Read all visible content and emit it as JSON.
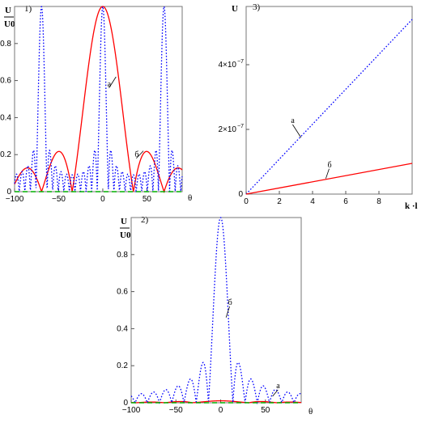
{
  "chart_data": [
    {
      "id": "panel-1",
      "type": "line",
      "panel_label": "1)",
      "ylabel_top": "U",
      "ylabel_bottom": "U0",
      "xlabel": "θ",
      "xlim": [
        -100,
        90
      ],
      "ylim": [
        0,
        1
      ],
      "xticks": [
        "-100",
        "-50",
        "0",
        "50"
      ],
      "xtick_values": [
        -100,
        -50,
        0,
        50
      ],
      "yticks": [
        "0",
        "0.2",
        "0.4",
        "0.6",
        "0.8"
      ],
      "ytick_values": [
        0,
        0.2,
        0.4,
        0.6,
        0.8
      ],
      "annotations": [
        {
          "text": "а",
          "x": 15,
          "y": 0.62,
          "tx": 7,
          "ty": 0.56
        },
        {
          "text": "б",
          "x": 46,
          "y": 0.22,
          "tx": 38,
          "ty": 0.18
        }
      ],
      "series": [
        {
          "id": "a",
          "color": "#ff0000",
          "dash": "",
          "func": "sinc",
          "amp": 1.0,
          "k": 0.0905
        },
        {
          "id": "b",
          "color": "#0000ff",
          "dash": "1.6,2.2",
          "func": "array",
          "amp": 1.0,
          "N": 11,
          "u": 0.0905
        },
        {
          "id": "zero",
          "color": "#00b000",
          "dash": "6,4",
          "func": "zero"
        }
      ]
    },
    {
      "id": "panel-2",
      "type": "line",
      "panel_label": "2)",
      "ylabel_top": "U",
      "ylabel_bottom": "U0",
      "xlabel": "θ",
      "xlim": [
        -100,
        90
      ],
      "ylim": [
        0,
        1
      ],
      "xticks": [
        "-100",
        "-50",
        "0",
        "50"
      ],
      "xtick_values": [
        -100,
        -50,
        0,
        50
      ],
      "yticks": [
        "0",
        "0.2",
        "0.4",
        "0.6",
        "0.8"
      ],
      "ytick_values": [
        0,
        0.2,
        0.4,
        0.6,
        0.8
      ],
      "annotations": [
        {
          "text": "б",
          "x": 6,
          "y": 0.46,
          "tx": 10,
          "ty": 0.52
        },
        {
          "text": "а",
          "x": 58,
          "y": 0.035,
          "tx": 64,
          "ty": 0.07
        }
      ],
      "series": [
        {
          "id": "a",
          "color": "#ff0000",
          "dash": "",
          "func": "sidelobes",
          "amp": 0.03
        },
        {
          "id": "b",
          "color": "#0000ff",
          "dash": "1.6,2.2",
          "func": "sinc",
          "amp": 1.0,
          "k": 0.23
        },
        {
          "id": "zero",
          "color": "#00b000",
          "dash": "6,4",
          "func": "zero"
        }
      ]
    },
    {
      "id": "panel-3",
      "type": "line",
      "panel_label": "3)",
      "ylabel_top": "U",
      "xlabel": "k ·l",
      "xlim": [
        0,
        10
      ],
      "ylim": [
        0,
        5.8e-07
      ],
      "xticks": [
        "0",
        "2",
        "4",
        "6",
        "8"
      ],
      "xtick_values": [
        0,
        2,
        4,
        6,
        8
      ],
      "yticks": [
        "0",
        "2×10",
        "4×10"
      ],
      "ytick_values": [
        0,
        2e-07,
        4e-07
      ],
      "ytick_exp": "−7",
      "annotations": [
        {
          "text": "а",
          "x": 3.3,
          "y": 1.75e-07,
          "tx": 2.8,
          "ty": 2.15e-07
        },
        {
          "text": "б",
          "x": 4.8,
          "y": 4.8e-08,
          "tx": 5.0,
          "ty": 7.8e-08
        }
      ],
      "series": [
        {
          "id": "a",
          "color": "#0000ff",
          "dash": "1.6,2.2",
          "x": [
            0,
            10
          ],
          "y": [
            0,
            5.4e-07
          ]
        },
        {
          "id": "b",
          "color": "#ff0000",
          "dash": "",
          "x": [
            0,
            10
          ],
          "y": [
            0,
            9.5e-08
          ]
        }
      ]
    }
  ]
}
